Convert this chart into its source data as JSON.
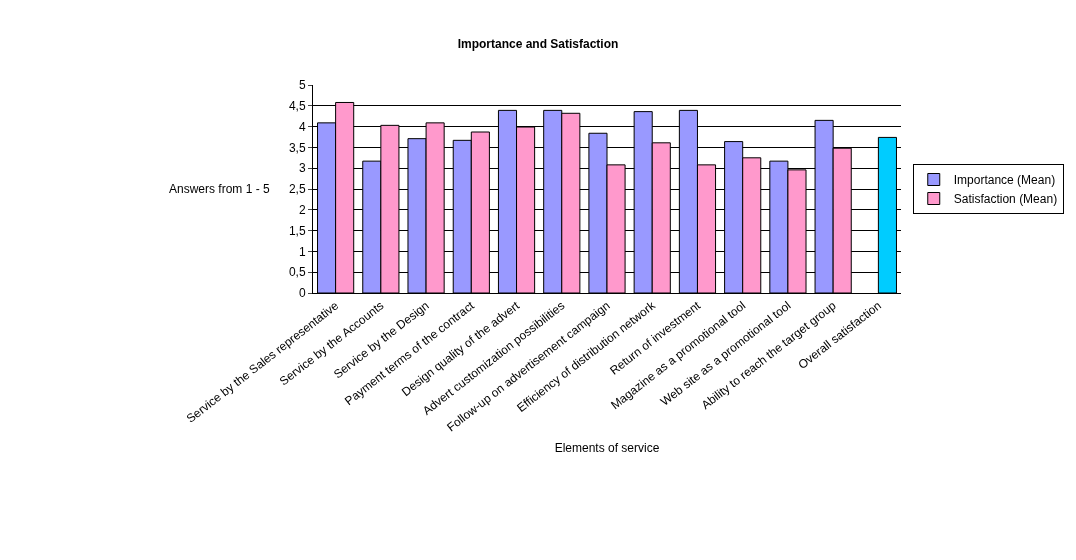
{
  "chart_data": {
    "type": "bar",
    "title": "Importance and Satisfaction",
    "xlabel": "Elements of service",
    "ylabel": "Answers from 1 - 5",
    "categories": [
      "Service by the Sales representative",
      "Service by the Accounts",
      "Service by the Design",
      "Payment terms of the contract",
      "Design quality of the advert",
      "Advert customization possibilities",
      "Follow-up on advertisement campaign",
      "Efficiency of distribution network",
      "Return of investment",
      "Magazine as a promotional tool",
      "Web site as a promotional tool",
      "Ability to reach the target group",
      "Overall satisfaction"
    ],
    "series": [
      {
        "name": "Importance (Mean)",
        "color": "#9999ff",
        "values": [
          4.09,
          3.17,
          3.71,
          3.67,
          4.39,
          4.39,
          3.84,
          4.36,
          4.39,
          3.64,
          3.17,
          4.15,
          null
        ]
      },
      {
        "name": "Satisfaction (Mean)",
        "color": "#ff99cc",
        "colors": [
          null,
          null,
          null,
          null,
          null,
          null,
          null,
          null,
          null,
          null,
          null,
          null,
          "#00ccff"
        ],
        "values": [
          4.58,
          4.03,
          4.09,
          3.87,
          3.99,
          4.32,
          3.08,
          3.61,
          3.08,
          3.25,
          2.96,
          3.48,
          3.74
        ]
      }
    ],
    "ylim": [
      0,
      5
    ],
    "yticks": [
      0,
      {
        "value": 0.5,
        "label": "0,5"
      },
      1,
      {
        "value": 1.5,
        "label": "1,5"
      },
      2,
      {
        "value": 2.5,
        "label": "2,5"
      },
      3,
      {
        "value": 3.5,
        "label": "3,5"
      },
      4,
      {
        "value": 4.5,
        "label": "4,5"
      },
      5
    ],
    "grid": "y",
    "legend": "right"
  }
}
